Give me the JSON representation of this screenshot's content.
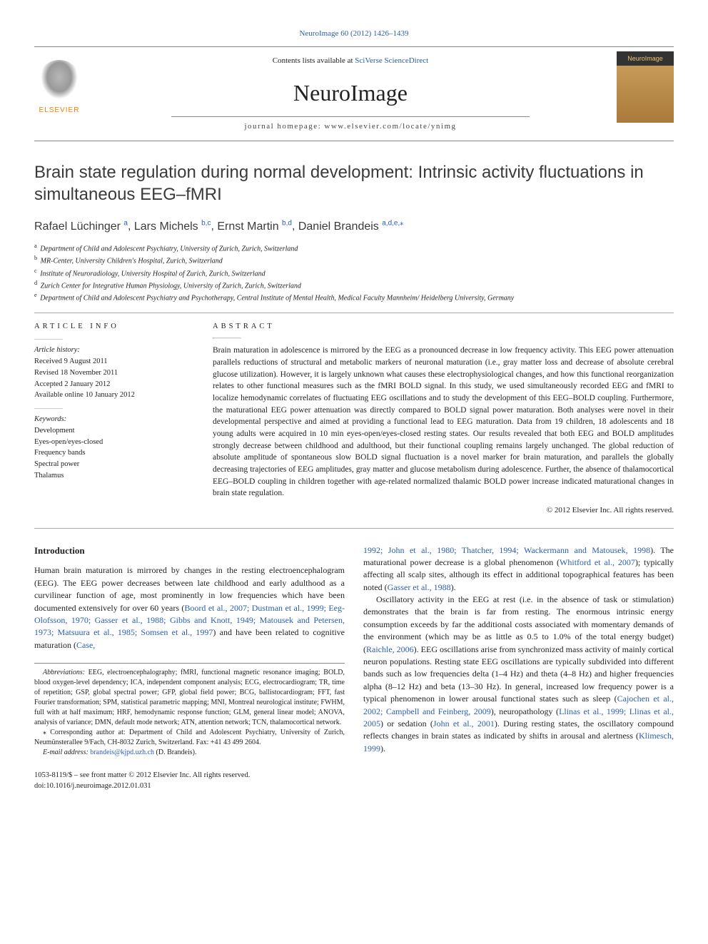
{
  "colors": {
    "link": "#2a5db0",
    "text": "#222",
    "elsevier_orange": "#e98300",
    "rule": "#888"
  },
  "header": {
    "journal_ref": "NeuroImage 60 (2012) 1426–1439",
    "contents_prefix": "Contents lists available at ",
    "contents_link": "SciVerse ScienceDirect",
    "journal_name": "NeuroImage",
    "homepage_label": "journal homepage: www.elsevier.com/locate/ynimg",
    "elsevier_label": "ELSEVIER",
    "cover_label": "NeuroImage"
  },
  "article": {
    "title": "Brain state regulation during normal development: Intrinsic activity fluctuations in simultaneous EEG–fMRI",
    "authors": [
      {
        "name": "Rafael Lüchinger",
        "affil": "a"
      },
      {
        "name": "Lars Michels",
        "affil": "b,c"
      },
      {
        "name": "Ernst Martin",
        "affil": "b,d"
      },
      {
        "name": "Daniel Brandeis",
        "affil": "a,d,e,",
        "corr": true
      }
    ],
    "affiliations": [
      {
        "key": "a",
        "text": "Department of Child and Adolescent Psychiatry, University of Zurich, Zurich, Switzerland"
      },
      {
        "key": "b",
        "text": "MR-Center, University Children's Hospital, Zurich, Switzerland"
      },
      {
        "key": "c",
        "text": "Institute of Neuroradiology, University Hospital of Zurich, Zurich, Switzerland"
      },
      {
        "key": "d",
        "text": "Zurich Center for Integrative Human Physiology, University of Zurich, Zurich, Switzerland"
      },
      {
        "key": "e",
        "text": "Department of Child and Adolescent Psychiatry and Psychotherapy, Central Institute of Mental Health, Medical Faculty Mannheim/ Heidelberg University, Germany"
      }
    ]
  },
  "article_info": {
    "heading": "article info",
    "history_heading": "Article history:",
    "history": [
      "Received 9 August 2011",
      "Revised 18 November 2011",
      "Accepted 2 January 2012",
      "Available online 10 January 2012"
    ],
    "keywords_heading": "Keywords:",
    "keywords": [
      "Development",
      "Eyes-open/eyes-closed",
      "Frequency bands",
      "Spectral power",
      "Thalamus"
    ]
  },
  "abstract": {
    "heading": "abstract",
    "text": "Brain maturation in adolescence is mirrored by the EEG as a pronounced decrease in low frequency activity. This EEG power attenuation parallels reductions of structural and metabolic markers of neuronal maturation (i.e., gray matter loss and decrease of absolute cerebral glucose utilization). However, it is largely unknown what causes these electrophysiological changes, and how this functional reorganization relates to other functional measures such as the fMRI BOLD signal. In this study, we used simultaneously recorded EEG and fMRI to localize hemodynamic correlates of fluctuating EEG oscillations and to study the development of this EEG–BOLD coupling. Furthermore, the maturational EEG power attenuation was directly compared to BOLD signal power maturation. Both analyses were novel in their developmental perspective and aimed at providing a functional lead to EEG maturation. Data from 19 children, 18 adolescents and 18 young adults were acquired in 10 min eyes-open/eyes-closed resting states. Our results revealed that both EEG and BOLD amplitudes strongly decrease between childhood and adulthood, but their functional coupling remains largely unchanged. The global reduction of absolute amplitude of spontaneous slow BOLD signal fluctuation is a novel marker for brain maturation, and parallels the globally decreasing trajectories of EEG amplitudes, gray matter and glucose metabolism during adolescence. Further, the absence of thalamocortical EEG–BOLD coupling in children together with age-related normalized thalamic BOLD power increase indicated maturational changes in brain state regulation.",
    "copyright": "© 2012 Elsevier Inc. All rights reserved."
  },
  "body": {
    "section_heading": "Introduction",
    "col1_p1_pre": "Human brain maturation is mirrored by changes in the resting electroencephalogram (EEG). The EEG power decreases between late childhood and early adulthood as a curvilinear function of age, most prominently in low frequencies which have been documented extensively for over 60 years (",
    "col1_p1_cite1": "Boord et al., 2007; Dustman et al., 1999; Eeg-Olofsson, 1970; Gasser et al., 1988; Gibbs and Knott, 1949; Matousek and Petersen, 1973; Matsuura et al., 1985; Somsen et al., 1997",
    "col1_p1_mid": ") and have been related to cognitive maturation (",
    "col1_p1_cite2": "Case,",
    "col2_p1_cite_cont": "1992; John et al., 1980; Thatcher, 1994; Wackermann and Matousek, 1998",
    "col2_p1_mid1": "). The maturational power decrease is a global phenomenon (",
    "col2_p1_cite3": "Whitford et al., 2007",
    "col2_p1_mid2": "); typically affecting all scalp sites, although its effect in additional topographical features has been noted (",
    "col2_p1_cite4": "Gasser et al., 1988",
    "col2_p1_end": ").",
    "col2_p2_pre": "Oscillatory activity in the EEG at rest (i.e. in the absence of task or stimulation) demonstrates that the brain is far from resting. The enormous intrinsic energy consumption exceeds by far the additional costs associated with momentary demands of the environment (which may be as little as 0.5 to 1.0% of the total energy budget) (",
    "col2_p2_cite1": "Raichle, 2006",
    "col2_p2_mid1": "). EEG oscillations arise from synchronized mass activity of mainly cortical neuron populations. Resting state EEG oscillations are typically subdivided into different bands such as low frequencies delta (1–4 Hz) and theta (4–8 Hz) and higher frequencies alpha (8–12 Hz) and beta (13–30 Hz). In general, increased low frequency power is a typical phenomenon in lower arousal functional states such as sleep (",
    "col2_p2_cite2": "Cajochen et al., 2002; Campbell and Feinberg, 2009",
    "col2_p2_mid2": "), neuropathology (",
    "col2_p2_cite3": "Llinas et al., 1999; Llinas et al., 2005",
    "col2_p2_mid3": ") or sedation (",
    "col2_p2_cite4": "John et al., 2001",
    "col2_p2_mid4": "). During resting states, the oscillatory compound reflects changes in brain states as indicated by shifts in arousal and alertness (",
    "col2_p2_cite5": "Klimesch, 1999",
    "col2_p2_end": ")."
  },
  "footnotes": {
    "abbrev_label": "Abbreviations:",
    "abbrev_text": " EEG, electroencephalography; fMRI, functional magnetic resonance imaging; BOLD, blood oxygen-level dependency; ICA, independent component analysis; ECG, electrocardiogram; TR, time of repetition; GSP, global spectral power; GFP, global field power; BCG, ballistocardiogram; FFT, fast Fourier transformation; SPM, statistical parametric mapping; MNI, Montreal neurological institute; FWHM, full with at half maximum; HRF, hemodynamic response function; GLM, general linear model; ANOVA, analysis of variance; DMN, default mode network; ATN, attention network; TCN, thalamocortical network.",
    "corr_marker": "⁎",
    "corr_text": " Corresponding author at: Department of Child and Adolescent Psychiatry, University of Zurich, Neumünsterallee 9/Fach, CH-8032 Zurich, Switzerland. Fax: +41 43 499 2604.",
    "email_label": "E-mail address: ",
    "email": "brandeis@kjpd.uzh.ch",
    "email_suffix": " (D. Brandeis)."
  },
  "footer": {
    "issn_line": "1053-8119/$ – see front matter © 2012 Elsevier Inc. All rights reserved.",
    "doi_line": "doi:10.1016/j.neuroimage.2012.01.031"
  }
}
